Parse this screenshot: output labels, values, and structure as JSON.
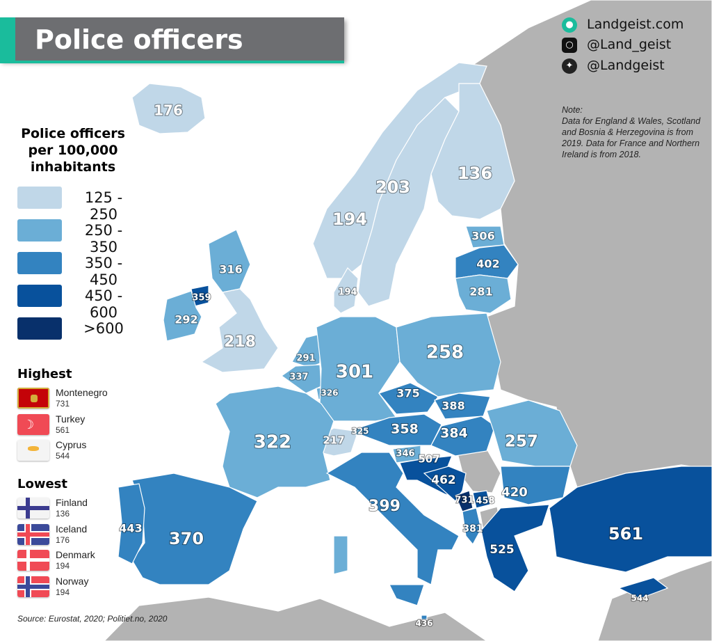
{
  "title": "Police officers",
  "colors": {
    "c1": "#c0d7e8",
    "c2": "#6baed6",
    "c3": "#3383c0",
    "c4": "#08519c",
    "c5": "#08306b",
    "no_data": "#b3b3b3",
    "accent": "#1abc9c",
    "title_bg": "#6d6e71"
  },
  "legend": {
    "title": "Police officers per 100,000 inhabitants",
    "items": [
      {
        "label": "125 - 250",
        "color": "#c0d7e8"
      },
      {
        "label": "250 - 350",
        "color": "#6baed6"
      },
      {
        "label": "350 - 450",
        "color": "#3383c0"
      },
      {
        "label": "450 - 600",
        "color": "#08519c"
      },
      {
        "label": ">600",
        "color": "#08306b"
      }
    ]
  },
  "highest": {
    "heading": "Highest",
    "items": [
      {
        "country": "Montenegro",
        "value": "731",
        "flag": "montenegro-flag"
      },
      {
        "country": "Turkey",
        "value": "561",
        "flag": "turkey-flag"
      },
      {
        "country": "Cyprus",
        "value": "544",
        "flag": "cyprus-flag"
      }
    ]
  },
  "lowest": {
    "heading": "Lowest",
    "items": [
      {
        "country": "Finland",
        "value": "136",
        "flag": "finland-flag"
      },
      {
        "country": "Iceland",
        "value": "176",
        "flag": "iceland-flag"
      },
      {
        "country": "Denmark",
        "value": "194",
        "flag": "denmark-flag"
      },
      {
        "country": "Norway",
        "value": "194",
        "flag": "norway-flag"
      }
    ]
  },
  "social": {
    "website": "Landgeist.com",
    "instagram": "@Land_geist",
    "twitter": "@Landgeist"
  },
  "note": {
    "heading": "Note:",
    "text": "Data for England & Wales, Scotland and Bosnia & Herzegovina is from 2019. Data for France and Northern Ireland is from 2018."
  },
  "source": "Source: Eurostat, 2020; Politiet.no, 2020",
  "map_values": [
    {
      "region": "Iceland",
      "value": "176"
    },
    {
      "region": "Norway",
      "value": "194"
    },
    {
      "region": "Sweden",
      "value": "203"
    },
    {
      "region": "Finland",
      "value": "136"
    },
    {
      "region": "Estonia",
      "value": "306"
    },
    {
      "region": "Latvia",
      "value": "402"
    },
    {
      "region": "Lithuania",
      "value": "281"
    },
    {
      "region": "Denmark",
      "value": "194"
    },
    {
      "region": "Scotland",
      "value": "316"
    },
    {
      "region": "Northern Ireland",
      "value": "359"
    },
    {
      "region": "Ireland",
      "value": "292"
    },
    {
      "region": "England & Wales",
      "value": "218"
    },
    {
      "region": "Netherlands",
      "value": "291"
    },
    {
      "region": "Belgium",
      "value": "337"
    },
    {
      "region": "Luxembourg",
      "value": "326"
    },
    {
      "region": "Germany",
      "value": "301"
    },
    {
      "region": "Poland",
      "value": "258"
    },
    {
      "region": "Czechia",
      "value": "375"
    },
    {
      "region": "Slovakia",
      "value": "388"
    },
    {
      "region": "Austria",
      "value": "358"
    },
    {
      "region": "Hungary",
      "value": "384"
    },
    {
      "region": "Switzerland",
      "value": "217"
    },
    {
      "region": "Liechtenstein",
      "value": "325"
    },
    {
      "region": "France",
      "value": "322"
    },
    {
      "region": "Slovenia",
      "value": "346"
    },
    {
      "region": "Croatia",
      "value": "507"
    },
    {
      "region": "Bosnia & Herzegovina",
      "value": "462"
    },
    {
      "region": "Montenegro",
      "value": "731"
    },
    {
      "region": "Kosovo",
      "value": "458"
    },
    {
      "region": "Albania",
      "value": "381"
    },
    {
      "region": "Romania",
      "value": "257"
    },
    {
      "region": "Bulgaria",
      "value": "420"
    },
    {
      "region": "Greece",
      "value": "525"
    },
    {
      "region": "Turkey",
      "value": "561"
    },
    {
      "region": "Cyprus",
      "value": "544"
    },
    {
      "region": "Malta",
      "value": "436"
    },
    {
      "region": "Italy",
      "value": "399"
    },
    {
      "region": "Spain",
      "value": "370"
    },
    {
      "region": "Portugal",
      "value": "443"
    }
  ]
}
